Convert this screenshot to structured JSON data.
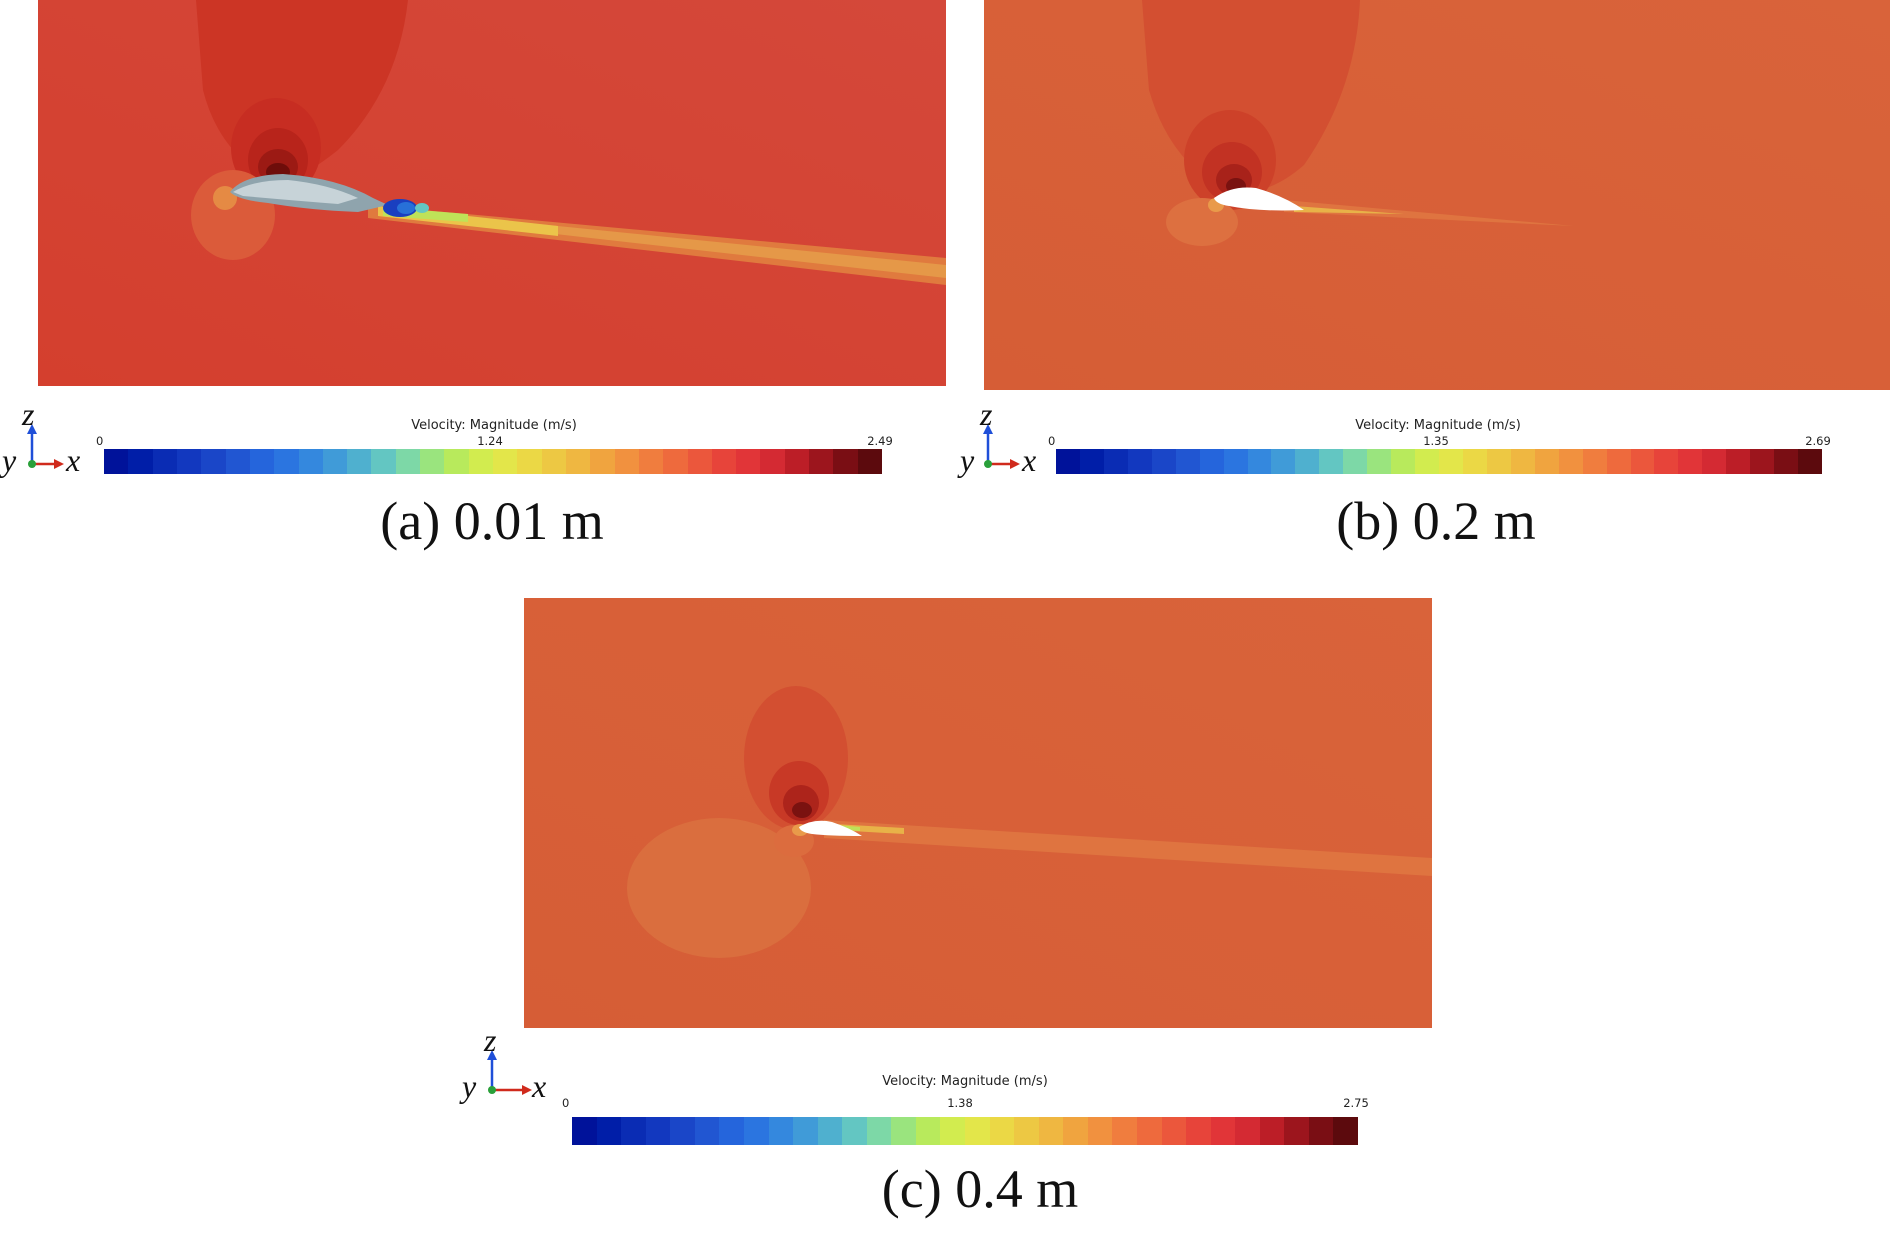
{
  "colors": {
    "colormap": [
      "#00129a",
      "#001ea8",
      "#0a2cb4",
      "#1238bf",
      "#1a46c8",
      "#2156d2",
      "#2565dc",
      "#2b75e0",
      "#3488de",
      "#409bd8",
      "#4fb0cf",
      "#63c6c2",
      "#7dd8a7",
      "#9ae47e",
      "#b8ea5c",
      "#d2ec4f",
      "#e3e64a",
      "#ebd845",
      "#edc843",
      "#efb741",
      "#f0a43f",
      "#f1913f",
      "#f07d3e",
      "#ee6a3d",
      "#eb573c",
      "#e7443a",
      "#e13538",
      "#d42a33",
      "#bc1e27",
      "#9c151d",
      "#7a0e14",
      "#5c0a0d"
    ]
  },
  "panels": [
    {
      "id": "a",
      "caption": "(a) 0.01 m",
      "legend": {
        "title": "Velocity: Magnitude (m/s)",
        "min": "0",
        "mid": "1.24",
        "max": "2.49"
      },
      "axes": {
        "z": "z",
        "y": "y",
        "x": "x"
      },
      "field": {
        "background": "#d34530",
        "shape": "blue-grey solid body with blue wake"
      }
    },
    {
      "id": "b",
      "caption": "(b) 0.2 m",
      "legend": {
        "title": "Velocity: Magnitude (m/s)",
        "min": "0",
        "mid": "1.35",
        "max": "2.69"
      },
      "axes": {
        "z": "z",
        "y": "y",
        "x": "x"
      },
      "field": {
        "background": "#d85e36",
        "shape": "white airfoil"
      }
    },
    {
      "id": "c",
      "caption": "(c) 0.4 m",
      "legend": {
        "title": "Velocity: Magnitude (m/s)",
        "min": "0",
        "mid": "1.38",
        "max": "2.75"
      },
      "axes": {
        "z": "z",
        "y": "y",
        "x": "x"
      },
      "field": {
        "background": "#d85e36",
        "shape": "white airfoil"
      }
    }
  ]
}
